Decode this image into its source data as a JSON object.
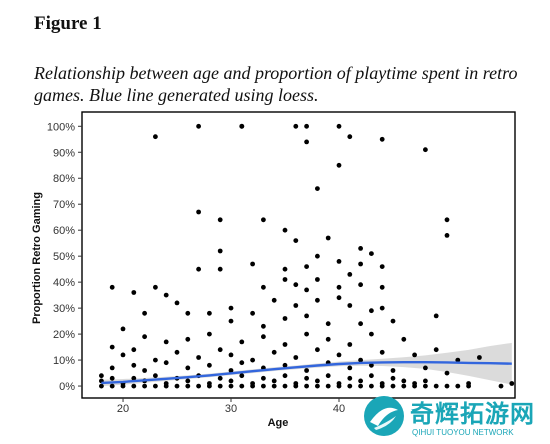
{
  "figure_label": "Figure 1",
  "caption": "Relationship between age and proportion of playtime spent in retro games. Blue line generated using loess.",
  "watermark": {
    "title": "奇辉拓游网",
    "subtitle": "QIHUI TUOYOU NETWORK"
  },
  "colors": {
    "points": "#000000",
    "loess_line": "#3366dd",
    "confidence_band": "#bdbdbd",
    "watermark": "#1aa6b7"
  },
  "chart_data": {
    "type": "scatter",
    "title": "",
    "xlabel": "Age",
    "ylabel": "Proportion Retro Gaming",
    "xlim": [
      16.2,
      56.3
    ],
    "ylim": [
      -4.6,
      105.5
    ],
    "x_ticks": [
      20,
      30,
      40
    ],
    "x_tick_labels": [
      "20",
      "30",
      "40"
    ],
    "y_ticks": [
      0,
      10,
      20,
      30,
      40,
      50,
      60,
      70,
      80,
      90,
      100
    ],
    "y_tick_labels": [
      "0%",
      "10%",
      "20%",
      "30%",
      "40%",
      "50%",
      "60%",
      "70%",
      "80%",
      "90%",
      "100%"
    ],
    "grid": false,
    "points": [
      [
        23,
        96
      ],
      [
        27,
        100
      ],
      [
        31,
        100
      ],
      [
        31,
        100
      ],
      [
        36,
        100
      ],
      [
        37,
        100
      ],
      [
        40,
        100
      ],
      [
        37,
        94
      ],
      [
        41,
        96
      ],
      [
        44,
        95
      ],
      [
        48,
        91
      ],
      [
        40,
        85
      ],
      [
        38,
        76
      ],
      [
        27,
        67
      ],
      [
        29,
        64
      ],
      [
        33,
        64
      ],
      [
        50,
        64
      ],
      [
        50,
        58
      ],
      [
        29,
        52
      ],
      [
        35,
        60
      ],
      [
        36,
        56
      ],
      [
        39,
        57
      ],
      [
        29,
        45
      ],
      [
        27,
        45
      ],
      [
        32,
        47
      ],
      [
        35,
        45
      ],
      [
        37,
        46
      ],
      [
        38,
        50
      ],
      [
        40,
        48
      ],
      [
        42,
        53
      ],
      [
        43,
        51
      ],
      [
        42,
        47
      ],
      [
        44,
        46
      ],
      [
        41,
        43
      ],
      [
        35,
        41
      ],
      [
        36,
        39
      ],
      [
        38,
        41
      ],
      [
        42,
        39
      ],
      [
        44,
        38
      ],
      [
        33,
        38
      ],
      [
        37,
        37
      ],
      [
        40,
        38
      ],
      [
        19,
        38
      ],
      [
        23,
        38
      ],
      [
        21,
        36
      ],
      [
        25,
        32
      ],
      [
        24,
        35
      ],
      [
        30,
        30
      ],
      [
        28,
        28
      ],
      [
        32,
        28
      ],
      [
        34,
        33
      ],
      [
        36,
        31
      ],
      [
        38,
        33
      ],
      [
        40,
        34
      ],
      [
        41,
        31
      ],
      [
        43,
        29
      ],
      [
        22,
        28
      ],
      [
        26,
        28
      ],
      [
        30,
        25
      ],
      [
        33,
        23
      ],
      [
        35,
        26
      ],
      [
        37,
        27
      ],
      [
        39,
        24
      ],
      [
        42,
        24
      ],
      [
        44,
        30
      ],
      [
        49,
        27
      ],
      [
        45,
        25
      ],
      [
        19,
        15
      ],
      [
        20,
        22
      ],
      [
        22,
        19
      ],
      [
        24,
        17
      ],
      [
        26,
        18
      ],
      [
        28,
        20
      ],
      [
        31,
        17
      ],
      [
        33,
        19
      ],
      [
        35,
        16
      ],
      [
        37,
        20
      ],
      [
        39,
        18
      ],
      [
        41,
        16
      ],
      [
        43,
        20
      ],
      [
        46,
        18
      ],
      [
        20,
        12
      ],
      [
        21,
        14
      ],
      [
        23,
        10
      ],
      [
        25,
        13
      ],
      [
        27,
        11
      ],
      [
        29,
        14
      ],
      [
        30,
        12
      ],
      [
        32,
        10
      ],
      [
        34,
        13
      ],
      [
        36,
        11
      ],
      [
        38,
        14
      ],
      [
        40,
        12
      ],
      [
        42,
        10
      ],
      [
        44,
        13
      ],
      [
        47,
        12
      ],
      [
        49,
        14
      ],
      [
        19,
        7
      ],
      [
        21,
        8
      ],
      [
        22,
        6
      ],
      [
        24,
        9
      ],
      [
        26,
        7
      ],
      [
        28,
        8
      ],
      [
        30,
        6
      ],
      [
        31,
        9
      ],
      [
        33,
        7
      ],
      [
        35,
        8
      ],
      [
        37,
        6
      ],
      [
        39,
        9
      ],
      [
        41,
        7
      ],
      [
        43,
        8
      ],
      [
        45,
        6
      ],
      [
        48,
        7
      ],
      [
        50,
        5
      ],
      [
        18,
        4
      ],
      [
        18,
        2
      ],
      [
        19,
        3
      ],
      [
        20,
        1
      ],
      [
        21,
        3
      ],
      [
        22,
        2
      ],
      [
        23,
        4
      ],
      [
        24,
        1
      ],
      [
        25,
        3
      ],
      [
        26,
        2
      ],
      [
        27,
        4
      ],
      [
        28,
        1
      ],
      [
        29,
        3
      ],
      [
        30,
        2
      ],
      [
        31,
        4
      ],
      [
        32,
        1
      ],
      [
        33,
        3
      ],
      [
        34,
        2
      ],
      [
        35,
        4
      ],
      [
        36,
        1
      ],
      [
        37,
        3
      ],
      [
        38,
        2
      ],
      [
        39,
        4
      ],
      [
        40,
        1
      ],
      [
        41,
        3
      ],
      [
        42,
        2
      ],
      [
        43,
        4
      ],
      [
        44,
        1
      ],
      [
        45,
        3
      ],
      [
        46,
        2
      ],
      [
        47,
        1
      ],
      [
        48,
        2
      ],
      [
        18,
        0
      ],
      [
        19,
        0
      ],
      [
        20,
        0
      ],
      [
        21,
        0
      ],
      [
        22,
        0
      ],
      [
        23,
        0
      ],
      [
        24,
        0
      ],
      [
        25,
        0
      ],
      [
        26,
        0
      ],
      [
        27,
        0
      ],
      [
        28,
        0
      ],
      [
        29,
        0
      ],
      [
        30,
        0
      ],
      [
        31,
        0
      ],
      [
        32,
        0
      ],
      [
        33,
        0
      ],
      [
        34,
        0
      ],
      [
        35,
        0
      ],
      [
        36,
        0
      ],
      [
        37,
        0
      ],
      [
        38,
        0
      ],
      [
        39,
        0
      ],
      [
        40,
        0
      ],
      [
        41,
        0
      ],
      [
        42,
        0
      ],
      [
        43,
        0
      ],
      [
        44,
        0
      ],
      [
        45,
        0
      ],
      [
        46,
        0
      ],
      [
        47,
        0
      ],
      [
        48,
        0
      ],
      [
        49,
        0
      ],
      [
        50,
        0
      ],
      [
        51,
        0
      ],
      [
        52,
        0
      ],
      [
        55,
        0
      ],
      [
        56,
        1
      ],
      [
        51,
        10
      ],
      [
        53,
        11
      ],
      [
        52,
        1
      ]
    ],
    "loess": {
      "x": [
        18,
        20,
        22,
        24,
        26,
        28,
        30,
        32,
        34,
        36,
        38,
        40,
        42,
        44,
        46,
        48,
        50,
        52,
        54,
        56
      ],
      "y": [
        1.2,
        1.6,
        2.2,
        2.8,
        3.4,
        4.1,
        4.9,
        5.7,
        6.5,
        7.2,
        7.9,
        8.5,
        8.9,
        9.1,
        9.2,
        9.2,
        9.1,
        8.9,
        8.8,
        8.6
      ],
      "lower": [
        0.0,
        0.5,
        1.3,
        2.0,
        2.7,
        3.4,
        4.2,
        5.0,
        5.8,
        6.5,
        7.1,
        7.6,
        7.8,
        7.7,
        7.3,
        6.6,
        5.4,
        3.9,
        2.2,
        0.6
      ],
      "upper": [
        2.4,
        2.7,
        3.1,
        3.6,
        4.1,
        4.8,
        5.6,
        6.4,
        7.2,
        7.9,
        8.7,
        9.4,
        10.0,
        10.5,
        11.1,
        11.8,
        12.8,
        13.9,
        15.4,
        16.6
      ]
    }
  }
}
